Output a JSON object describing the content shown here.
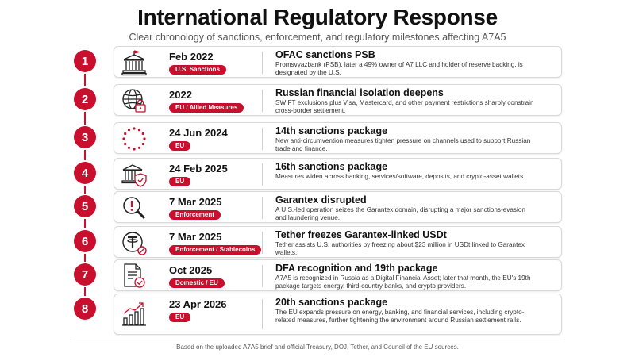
{
  "header": {
    "title": "International Regulatory Response",
    "subtitle": "Clear chronology of sanctions, enforcement, and regulatory milestones affecting A7A5"
  },
  "events": [
    {
      "number": "1",
      "icon": "bank-icon",
      "date": "Feb 2022",
      "tag": "U.S. Sanctions",
      "headline": "OFAC sanctions PSB",
      "description": "Promsvyazbank (PSB), later a 49% owner of A7 LLC and holder of reserve backing, is designated by the U.S."
    },
    {
      "number": "2",
      "icon": "globe-lock-icon",
      "date": "2022",
      "tag": "EU / Allied Measures",
      "headline": "Russian financial isolation deepens",
      "description": "SWIFT exclusions plus Visa, Mastercard, and other payment restrictions sharply constrain cross-border settlement."
    },
    {
      "number": "3",
      "icon": "eu-stars-icon",
      "date": "24 Jun 2024",
      "tag": "EU",
      "headline": "14th sanctions package",
      "description": "New anti-circumvention measures tighten pressure on channels used to support Russian trade and finance."
    },
    {
      "number": "4",
      "icon": "bank-shield-icon",
      "date": "24 Feb 2025",
      "tag": "EU",
      "headline": "16th sanctions package",
      "description": "Measures widen across banking, services/software, deposits, and crypto-asset wallets."
    },
    {
      "number": "5",
      "icon": "magnifier-alert-icon",
      "date": "7 Mar 2025",
      "tag": "Enforcement",
      "headline": "Garantex disrupted",
      "description": "A U.S.-led operation seizes the Garantex domain, disrupting a major sanctions-evasion and laundering venue."
    },
    {
      "number": "6",
      "icon": "tether-coin-icon",
      "date": "7 Mar 2025",
      "tag": "Enforcement / Stablecoins",
      "headline": "Tether freezes Garantex-linked USDt",
      "description": "Tether assists U.S. authorities by freezing about $23 million in USDt linked to Garantex wallets."
    },
    {
      "number": "7",
      "icon": "document-check-icon",
      "date": "Oct 2025",
      "tag": "Domestic / EU",
      "headline": "DFA recognition and 19th package",
      "description": "A7A5 is recognized in Russia as a Digital Financial Asset; later that month, the EU's 19th package targets energy, third-country banks, and crypto providers."
    },
    {
      "number": "8",
      "icon": "chart-growth-icon",
      "date": "23 Apr 2026",
      "tag": "EU",
      "headline": "20th sanctions package",
      "description": "The EU expands pressure on energy, banking, and financial services, including crypto-related measures, further tightening the environment around Russian settlement rails."
    }
  ],
  "footer": {
    "note": "Based on the uploaded A7A5 brief and official Treasury, DOJ, Tether, and Council of the EU sources."
  },
  "colors": {
    "accent": "#c8102e",
    "text": "#111111",
    "muted": "#555555",
    "border": "#d9d9d9"
  }
}
